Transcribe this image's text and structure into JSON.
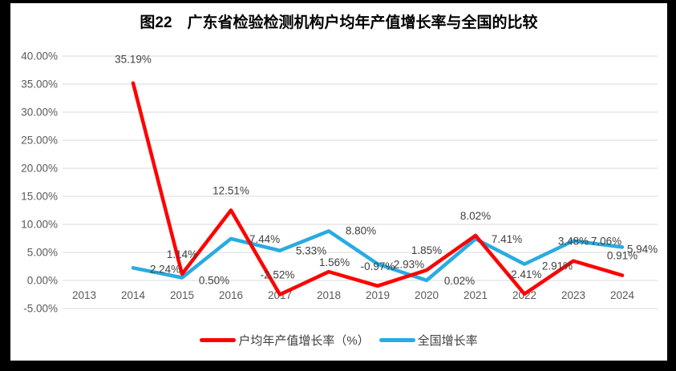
{
  "title": "图22　广东省检验检测机构户均年产值增长率与全国的比较",
  "colors": {
    "red_series": "#FF0000",
    "blue_series": "#29ABE2",
    "gridline": "#D9D9D9",
    "axis_text": "#595959",
    "label_text": "#404040",
    "frame": "#000000",
    "background": "#FFFFFF"
  },
  "legend": {
    "items": [
      {
        "label": "户均年产值增长率（%）",
        "color": "#FF0000"
      },
      {
        "label": "全国增长率",
        "color": "#29ABE2"
      }
    ]
  },
  "chart_data": {
    "type": "line",
    "title": "图22　广东省检验检测机构户均年产值增长率与全国的比较",
    "categories": [
      "2013",
      "2014",
      "2015",
      "2016",
      "2017",
      "2018",
      "2019",
      "2020",
      "2021",
      "2022",
      "2023",
      "2024"
    ],
    "series": [
      {
        "name": "户均年产值增长率（%）",
        "color": "#FF0000",
        "values": [
          null,
          35.19,
          1.14,
          12.51,
          -2.52,
          1.56,
          -0.97,
          1.85,
          8.02,
          -2.41,
          3.48,
          0.91
        ],
        "labels": [
          "",
          "35.19%",
          "1.14%",
          "12.51%",
          "-2.52%",
          "1.56%",
          "-0.97%",
          "1.85%",
          "8.02%",
          "-2.41%",
          "3.48%",
          "0.91%"
        ],
        "label_offsets": [
          [
            0,
            -20
          ],
          [
            0,
            -25
          ],
          [
            0,
            -20
          ],
          [
            0,
            -20
          ],
          [
            -3,
            -20
          ],
          [
            7,
            -7
          ],
          [
            0,
            -20
          ],
          [
            0,
            -20
          ],
          [
            0,
            -20
          ],
          [
            0,
            -20
          ],
          [
            0,
            -20
          ],
          [
            0,
            -20
          ]
        ]
      },
      {
        "name": "全国增长率",
        "color": "#29ABE2",
        "values": [
          null,
          2.24,
          0.5,
          7.44,
          5.33,
          8.8,
          2.93,
          0.02,
          7.41,
          2.91,
          7.06,
          5.94
        ],
        "labels": [
          "",
          "2.24%",
          "0.50%",
          "7.44%",
          "5.33%",
          "8.80%",
          "2.93%",
          "0.02%",
          "7.41%",
          "2.91%",
          "7.06%",
          "5.94%"
        ],
        "label_offsets": [
          [
            40,
            6
          ],
          [
            40,
            6
          ],
          [
            40,
            8
          ],
          [
            42,
            5
          ],
          [
            39,
            5
          ],
          [
            40,
            4
          ],
          [
            39,
            5
          ],
          [
            41,
            5
          ],
          [
            39,
            5
          ],
          [
            41,
            7
          ],
          [
            41,
            5
          ],
          [
            25,
            7
          ]
        ]
      }
    ],
    "y_axis": {
      "tick_labels": [
        "40.00%",
        "35.00%",
        "30.00%",
        "25.00%",
        "20.00%",
        "15.00%",
        "10.00%",
        "5.00%",
        "0.00%",
        "-5.00%"
      ],
      "max": 40,
      "min": -5,
      "step": 5
    },
    "xlabel": "",
    "ylabel": "",
    "grid": "horizontal",
    "legend_position": "bottom"
  }
}
